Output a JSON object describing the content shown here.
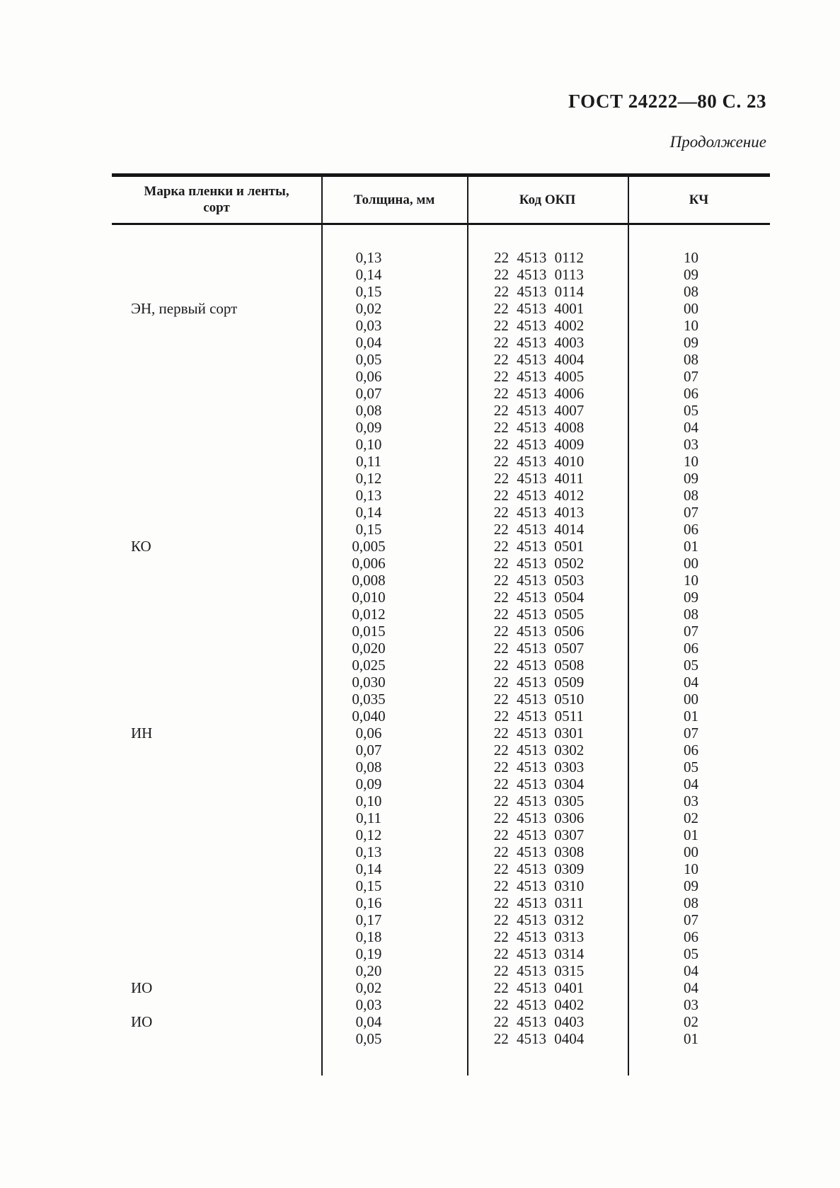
{
  "page": {
    "header": "ГОСТ 24222—80 С. 23",
    "continuation": "Продолжение"
  },
  "table": {
    "headers": {
      "mark": "Марка пленки и ленты,\nсорт",
      "thickness": "Толщина, мм",
      "okp": "Код ОКП",
      "kch": "КЧ"
    },
    "rows": [
      {
        "mark": "",
        "thickness": "0,13",
        "okp": "22 4513 0112",
        "kch": "10"
      },
      {
        "mark": "",
        "thickness": "0,14",
        "okp": "22 4513 0113",
        "kch": "09"
      },
      {
        "mark": "",
        "thickness": "0,15",
        "okp": "22 4513 0114",
        "kch": "08"
      },
      {
        "mark": "ЭН, первый сорт",
        "thickness": "0,02",
        "okp": "22 4513 4001",
        "kch": "00"
      },
      {
        "mark": "",
        "thickness": "0,03",
        "okp": "22 4513 4002",
        "kch": "10"
      },
      {
        "mark": "",
        "thickness": "0,04",
        "okp": "22 4513 4003",
        "kch": "09"
      },
      {
        "mark": "",
        "thickness": "0,05",
        "okp": "22 4513 4004",
        "kch": "08"
      },
      {
        "mark": "",
        "thickness": "0,06",
        "okp": "22 4513 4005",
        "kch": "07"
      },
      {
        "mark": "",
        "thickness": "0,07",
        "okp": "22 4513 4006",
        "kch": "06"
      },
      {
        "mark": "",
        "thickness": "0,08",
        "okp": "22 4513 4007",
        "kch": "05"
      },
      {
        "mark": "",
        "thickness": "0,09",
        "okp": "22 4513 4008",
        "kch": "04"
      },
      {
        "mark": "",
        "thickness": "0,10",
        "okp": "22 4513 4009",
        "kch": "03"
      },
      {
        "mark": "",
        "thickness": "0,11",
        "okp": "22 4513 4010",
        "kch": "10"
      },
      {
        "mark": "",
        "thickness": "0,12",
        "okp": "22 4513 4011",
        "kch": "09"
      },
      {
        "mark": "",
        "thickness": "0,13",
        "okp": "22 4513 4012",
        "kch": "08"
      },
      {
        "mark": "",
        "thickness": "0,14",
        "okp": "22 4513 4013",
        "kch": "07"
      },
      {
        "mark": "",
        "thickness": "0,15",
        "okp": "22 4513 4014",
        "kch": "06"
      },
      {
        "mark": "КО",
        "thickness": "0,005",
        "okp": "22 4513 0501",
        "kch": "01"
      },
      {
        "mark": "",
        "thickness": "0,006",
        "okp": "22 4513 0502",
        "kch": "00"
      },
      {
        "mark": "",
        "thickness": "0,008",
        "okp": "22 4513 0503",
        "kch": "10"
      },
      {
        "mark": "",
        "thickness": "0,010",
        "okp": "22 4513 0504",
        "kch": "09"
      },
      {
        "mark": "",
        "thickness": "0,012",
        "okp": "22 4513 0505",
        "kch": "08"
      },
      {
        "mark": "",
        "thickness": "0,015",
        "okp": "22 4513 0506",
        "kch": "07"
      },
      {
        "mark": "",
        "thickness": "0,020",
        "okp": "22 4513 0507",
        "kch": "06"
      },
      {
        "mark": "",
        "thickness": "0,025",
        "okp": "22 4513 0508",
        "kch": "05"
      },
      {
        "mark": "",
        "thickness": "0,030",
        "okp": "22 4513 0509",
        "kch": "04"
      },
      {
        "mark": "",
        "thickness": "0,035",
        "okp": "22 4513 0510",
        "kch": "00"
      },
      {
        "mark": "",
        "thickness": "0,040",
        "okp": "22 4513 0511",
        "kch": "01"
      },
      {
        "mark": "ИН",
        "thickness": "0,06",
        "okp": "22 4513 0301",
        "kch": "07"
      },
      {
        "mark": "",
        "thickness": "0,07",
        "okp": "22 4513 0302",
        "kch": "06"
      },
      {
        "mark": "",
        "thickness": "0,08",
        "okp": "22 4513 0303",
        "kch": "05"
      },
      {
        "mark": "",
        "thickness": "0,09",
        "okp": "22 4513 0304",
        "kch": "04"
      },
      {
        "mark": "",
        "thickness": "0,10",
        "okp": "22 4513 0305",
        "kch": "03"
      },
      {
        "mark": "",
        "thickness": "0,11",
        "okp": "22 4513 0306",
        "kch": "02"
      },
      {
        "mark": "",
        "thickness": "0,12",
        "okp": "22 4513 0307",
        "kch": "01"
      },
      {
        "mark": "",
        "thickness": "0,13",
        "okp": "22 4513 0308",
        "kch": "00"
      },
      {
        "mark": "",
        "thickness": "0,14",
        "okp": "22 4513 0309",
        "kch": "10"
      },
      {
        "mark": "",
        "thickness": "0,15",
        "okp": "22 4513 0310",
        "kch": "09"
      },
      {
        "mark": "",
        "thickness": "0,16",
        "okp": "22 4513 0311",
        "kch": "08"
      },
      {
        "mark": "",
        "thickness": "0,17",
        "okp": "22 4513 0312",
        "kch": "07"
      },
      {
        "mark": "",
        "thickness": "0,18",
        "okp": "22 4513 0313",
        "kch": "06"
      },
      {
        "mark": "",
        "thickness": "0,19",
        "okp": "22 4513 0314",
        "kch": "05"
      },
      {
        "mark": "",
        "thickness": "0,20",
        "okp": "22 4513 0315",
        "kch": "04"
      },
      {
        "mark": "ИО",
        "thickness": "0,02",
        "okp": "22 4513 0401",
        "kch": "04"
      },
      {
        "mark": "",
        "thickness": "0,03",
        "okp": "22 4513 0402",
        "kch": "03"
      },
      {
        "mark": "ИО",
        "thickness": "0,04",
        "okp": "22 4513 0403",
        "kch": "02"
      },
      {
        "mark": "",
        "thickness": "0,05",
        "okp": "22 4513 0404",
        "kch": "01"
      }
    ]
  }
}
